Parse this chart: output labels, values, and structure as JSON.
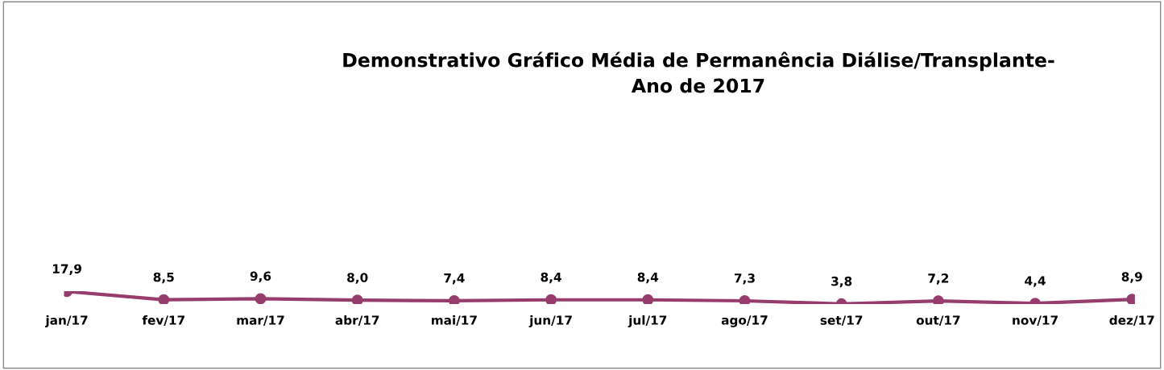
{
  "chart_data": {
    "type": "line",
    "title": "Demonstrativo Gráfico Média de Permanência Diálise/Transplante-\nAno de 2017",
    "categories": [
      "jan/17",
      "fev/17",
      "mar/17",
      "abr/17",
      "mai/17",
      "jun/17",
      "jul/17",
      "ago/17",
      "set/17",
      "out/17",
      "nov/17",
      "dez/17"
    ],
    "series": [
      {
        "color": "#963d6e",
        "values": [
          17.9,
          8.5,
          9.6,
          8.0,
          7.4,
          8.4,
          8.4,
          7.3,
          3.8,
          7.2,
          4.4,
          8.9
        ],
        "value_labels": [
          "17,9",
          "8,5",
          "9,6",
          "8,0",
          "7,4",
          "8,4",
          "8,4",
          "7,3",
          "3,8",
          "7,2",
          "4,4",
          "8,9"
        ]
      }
    ],
    "tick_labels": "x",
    "marker": "circle",
    "line_style": "solid",
    "grid": false,
    "legend": false
  }
}
